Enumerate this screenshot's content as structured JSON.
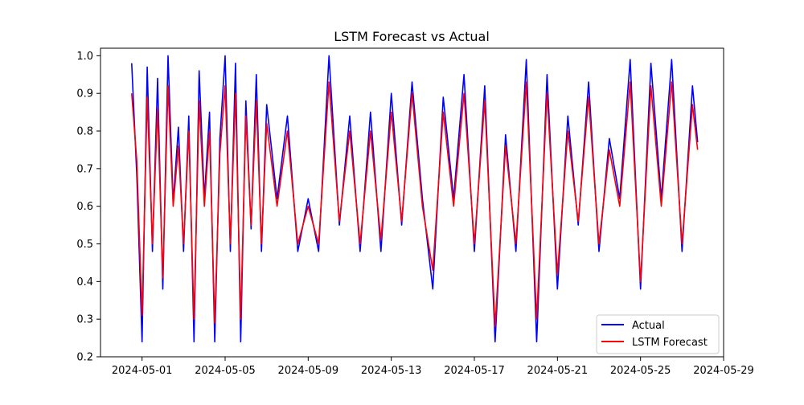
{
  "chart_data": {
    "type": "line",
    "title": "LSTM Forecast vs Actual",
    "xlabel": "",
    "ylabel": "",
    "xlim": [
      "2024-04-29T00:00",
      "2024-05-29T00:00"
    ],
    "ylim": [
      0.2,
      1.02
    ],
    "x_ticks": [
      "2024-05-01",
      "2024-05-05",
      "2024-05-09",
      "2024-05-13",
      "2024-05-17",
      "2024-05-21",
      "2024-05-25",
      "2024-05-29"
    ],
    "y_ticks": [
      0.2,
      0.3,
      0.4,
      0.5,
      0.6,
      0.7,
      0.8,
      0.9,
      1.0
    ],
    "y_tick_labels": [
      "0.2",
      "0.3",
      "0.4",
      "0.5",
      "0.6",
      "0.7",
      "0.8",
      "0.9",
      "1.0"
    ],
    "grid": false,
    "legend": "lower-right",
    "series": [
      {
        "name": "Actual",
        "color": "#0000ff",
        "x": [
          "2024-04-30T12:00",
          "2024-04-30T18:00",
          "2024-05-01T00:00",
          "2024-05-01T06:00",
          "2024-05-01T12:00",
          "2024-05-01T18:00",
          "2024-05-02T00:00",
          "2024-05-02T06:00",
          "2024-05-02T12:00",
          "2024-05-02T18:00",
          "2024-05-03T00:00",
          "2024-05-03T06:00",
          "2024-05-03T12:00",
          "2024-05-03T18:00",
          "2024-05-04T00:00",
          "2024-05-04T06:00",
          "2024-05-04T12:00",
          "2024-05-04T18:00",
          "2024-05-05T00:00",
          "2024-05-05T06:00",
          "2024-05-05T12:00",
          "2024-05-05T18:00",
          "2024-05-06T00:00",
          "2024-05-06T06:00",
          "2024-05-06T12:00",
          "2024-05-06T18:00",
          "2024-05-07T00:00",
          "2024-05-07T12:00",
          "2024-05-08T00:00",
          "2024-05-08T12:00",
          "2024-05-09T00:00",
          "2024-05-09T12:00",
          "2024-05-10T00:00",
          "2024-05-10T12:00",
          "2024-05-11T00:00",
          "2024-05-11T12:00",
          "2024-05-12T00:00",
          "2024-05-12T12:00",
          "2024-05-13T00:00",
          "2024-05-13T12:00",
          "2024-05-14T00:00",
          "2024-05-14T12:00",
          "2024-05-15T00:00",
          "2024-05-15T12:00",
          "2024-05-16T00:00",
          "2024-05-16T12:00",
          "2024-05-17T00:00",
          "2024-05-17T12:00",
          "2024-05-18T00:00",
          "2024-05-18T12:00",
          "2024-05-19T00:00",
          "2024-05-19T12:00",
          "2024-05-20T00:00",
          "2024-05-20T12:00",
          "2024-05-21T00:00",
          "2024-05-21T12:00",
          "2024-05-22T00:00",
          "2024-05-22T12:00",
          "2024-05-23T00:00",
          "2024-05-23T12:00",
          "2024-05-24T00:00",
          "2024-05-24T12:00",
          "2024-05-25T00:00",
          "2024-05-25T12:00",
          "2024-05-26T00:00",
          "2024-05-26T12:00",
          "2024-05-27T00:00",
          "2024-05-27T12:00",
          "2024-05-27T18:00"
        ],
        "y": [
          0.98,
          0.68,
          0.24,
          0.97,
          0.48,
          0.94,
          0.38,
          1.0,
          0.61,
          0.81,
          0.48,
          0.84,
          0.24,
          0.96,
          0.62,
          0.85,
          0.24,
          0.78,
          1.0,
          0.48,
          0.98,
          0.24,
          0.88,
          0.54,
          0.95,
          0.48,
          0.87,
          0.62,
          0.84,
          0.48,
          0.62,
          0.48,
          1.0,
          0.55,
          0.84,
          0.48,
          0.85,
          0.48,
          0.9,
          0.55,
          0.93,
          0.62,
          0.38,
          0.89,
          0.62,
          0.95,
          0.48,
          0.92,
          0.24,
          0.79,
          0.48,
          0.99,
          0.24,
          0.95,
          0.38,
          0.84,
          0.55,
          0.93,
          0.48,
          0.78,
          0.62,
          0.99,
          0.38,
          0.98,
          0.62,
          0.99,
          0.48,
          0.92,
          0.77
        ]
      },
      {
        "name": "LSTM Forecast",
        "color": "#ff0000",
        "x": [
          "2024-04-30T12:00",
          "2024-04-30T18:00",
          "2024-05-01T00:00",
          "2024-05-01T06:00",
          "2024-05-01T12:00",
          "2024-05-01T18:00",
          "2024-05-02T00:00",
          "2024-05-02T06:00",
          "2024-05-02T12:00",
          "2024-05-02T18:00",
          "2024-05-03T00:00",
          "2024-05-03T06:00",
          "2024-05-03T12:00",
          "2024-05-03T18:00",
          "2024-05-04T00:00",
          "2024-05-04T06:00",
          "2024-05-04T12:00",
          "2024-05-04T18:00",
          "2024-05-05T00:00",
          "2024-05-05T06:00",
          "2024-05-05T12:00",
          "2024-05-05T18:00",
          "2024-05-06T00:00",
          "2024-05-06T06:00",
          "2024-05-06T12:00",
          "2024-05-06T18:00",
          "2024-05-07T00:00",
          "2024-05-07T12:00",
          "2024-05-08T00:00",
          "2024-05-08T12:00",
          "2024-05-09T00:00",
          "2024-05-09T12:00",
          "2024-05-10T00:00",
          "2024-05-10T12:00",
          "2024-05-11T00:00",
          "2024-05-11T12:00",
          "2024-05-12T00:00",
          "2024-05-12T12:00",
          "2024-05-13T00:00",
          "2024-05-13T12:00",
          "2024-05-14T00:00",
          "2024-05-14T12:00",
          "2024-05-15T00:00",
          "2024-05-15T12:00",
          "2024-05-16T00:00",
          "2024-05-16T12:00",
          "2024-05-17T00:00",
          "2024-05-17T12:00",
          "2024-05-18T00:00",
          "2024-05-18T12:00",
          "2024-05-19T00:00",
          "2024-05-19T12:00",
          "2024-05-20T00:00",
          "2024-05-20T12:00",
          "2024-05-21T00:00",
          "2024-05-21T12:00",
          "2024-05-22T00:00",
          "2024-05-22T12:00",
          "2024-05-23T00:00",
          "2024-05-23T12:00",
          "2024-05-24T00:00",
          "2024-05-24T12:00",
          "2024-05-25T00:00",
          "2024-05-25T12:00",
          "2024-05-26T00:00",
          "2024-05-26T12:00",
          "2024-05-27T00:00",
          "2024-05-27T12:00",
          "2024-05-27T18:00"
        ],
        "y": [
          0.9,
          0.72,
          0.31,
          0.89,
          0.5,
          0.86,
          0.41,
          0.92,
          0.6,
          0.76,
          0.5,
          0.8,
          0.3,
          0.88,
          0.6,
          0.8,
          0.29,
          0.74,
          0.92,
          0.5,
          0.9,
          0.3,
          0.84,
          0.55,
          0.88,
          0.5,
          0.82,
          0.6,
          0.8,
          0.5,
          0.6,
          0.5,
          0.93,
          0.56,
          0.8,
          0.5,
          0.8,
          0.51,
          0.85,
          0.56,
          0.9,
          0.6,
          0.43,
          0.85,
          0.6,
          0.9,
          0.5,
          0.88,
          0.28,
          0.76,
          0.5,
          0.93,
          0.3,
          0.9,
          0.42,
          0.8,
          0.56,
          0.89,
          0.5,
          0.75,
          0.6,
          0.93,
          0.4,
          0.92,
          0.6,
          0.93,
          0.5,
          0.87,
          0.75
        ]
      }
    ]
  }
}
